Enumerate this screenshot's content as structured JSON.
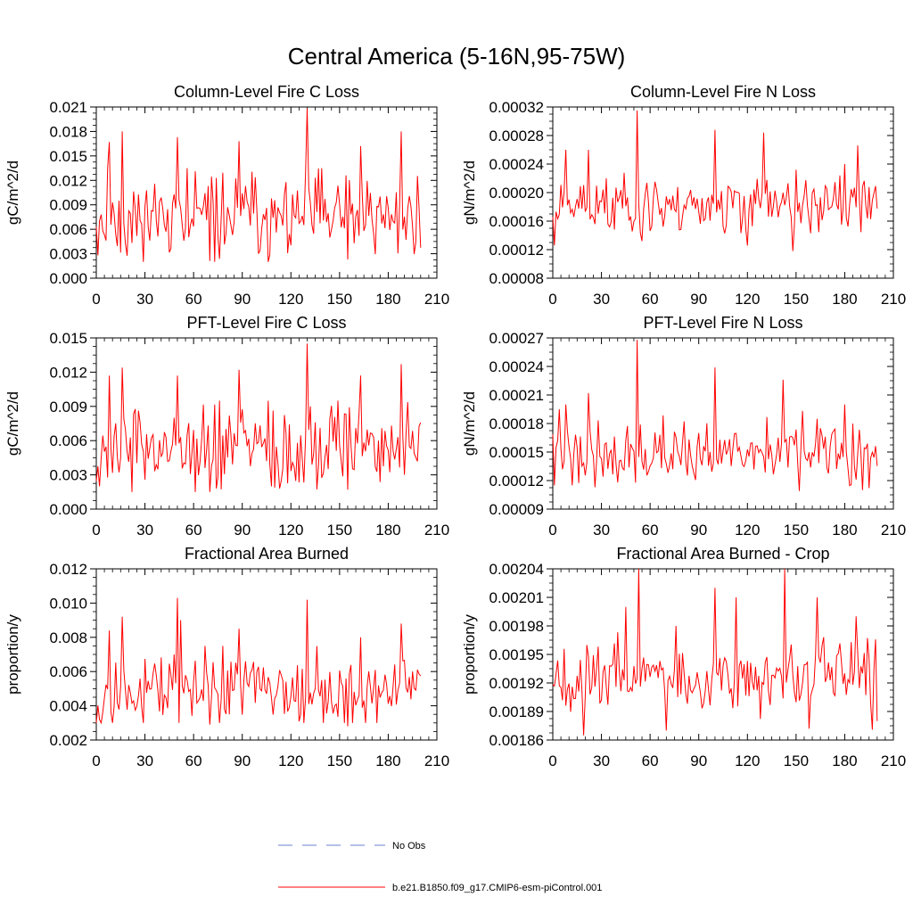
{
  "title": "Central America (5-16N,95-75W)",
  "colors": {
    "series": "#ff0000",
    "obs": "#6a7fd0",
    "axis": "#000000"
  },
  "legend": [
    {
      "label": "No Obs",
      "style": "dashed",
      "color": "#6a7fd0"
    },
    {
      "label": "b.e21.B1850.f09_g17.CMIP6-esm-piControl.001",
      "style": "solid",
      "color": "#ff0000"
    }
  ],
  "chart_data": [
    {
      "type": "line",
      "title": "Column-Level Fire C Loss",
      "ylabel": "gC/m^2/d",
      "xlim": [
        0,
        210
      ],
      "xticks": [
        "0",
        "30",
        "60",
        "90",
        "120",
        "150",
        "180",
        "210"
      ],
      "ylim": [
        0,
        0.021
      ],
      "yticks": [
        "0.000",
        "0.003",
        "0.006",
        "0.009",
        "0.012",
        "0.015",
        "0.018",
        "0.021"
      ],
      "seed": 11,
      "spikes": [
        [
          8,
          0.0167
        ],
        [
          16,
          0.018
        ],
        [
          50,
          0.0173
        ],
        [
          88,
          0.0168
        ],
        [
          130,
          0.0208
        ],
        [
          163,
          0.0162
        ],
        [
          188,
          0.018
        ]
      ],
      "dips": [
        [
          1,
          0.0028
        ],
        [
          70,
          0.0021
        ],
        [
          155,
          0.0023
        ]
      ],
      "series": [
        {
          "name": "b.e21.B1850.f09_g17.CMIP6-esm-piControl.001",
          "x_start": 0,
          "x_end": 200,
          "mean": 0.0075,
          "spread": 0.0028,
          "min": 0.002,
          "max": 0.0135
        }
      ]
    },
    {
      "type": "line",
      "title": "Column-Level Fire N Loss",
      "ylabel": "gN/m^2/d",
      "xlim": [
        0,
        210
      ],
      "xticks": [
        "0",
        "30",
        "60",
        "90",
        "120",
        "150",
        "180",
        "210"
      ],
      "ylim": [
        8e-05,
        0.00032
      ],
      "yticks": [
        "0.00008",
        "0.00012",
        "0.00016",
        "0.00020",
        "0.00024",
        "0.00028",
        "0.00032"
      ],
      "seed": 23,
      "spikes": [
        [
          8,
          0.00026
        ],
        [
          22,
          0.00026
        ],
        [
          52,
          0.000315
        ],
        [
          100,
          0.000288
        ],
        [
          130,
          0.000284
        ],
        [
          180,
          0.00024
        ],
        [
          188,
          0.000266
        ]
      ],
      "dips": [
        [
          1,
          0.000126
        ],
        [
          55,
          0.000132
        ],
        [
          148,
          0.000118
        ]
      ],
      "series": [
        {
          "name": "b.e21.B1850.f09_g17.CMIP6-esm-piControl.001",
          "x_start": 0,
          "x_end": 200,
          "mean": 0.00018,
          "spread": 2.2e-05,
          "min": 0.000125,
          "max": 0.000232
        }
      ]
    },
    {
      "type": "line",
      "title": "PFT-Level Fire C Loss",
      "ylabel": "gC/m^2/d",
      "xlim": [
        0,
        210
      ],
      "xticks": [
        "0",
        "30",
        "60",
        "90",
        "120",
        "150",
        "180",
        "210"
      ],
      "ylim": [
        0,
        0.015
      ],
      "yticks": [
        "0.000",
        "0.003",
        "0.006",
        "0.009",
        "0.012",
        "0.015"
      ],
      "seed": 37,
      "spikes": [
        [
          8,
          0.0117
        ],
        [
          16,
          0.0124
        ],
        [
          50,
          0.0117
        ],
        [
          88,
          0.0122
        ],
        [
          130,
          0.0145
        ],
        [
          163,
          0.0117
        ],
        [
          188,
          0.0127
        ]
      ],
      "dips": [
        [
          2,
          0.002
        ],
        [
          70,
          0.0015
        ],
        [
          155,
          0.0017
        ]
      ],
      "series": [
        {
          "name": "b.e21.B1850.f09_g17.CMIP6-esm-piControl.001",
          "x_start": 0,
          "x_end": 200,
          "mean": 0.0052,
          "spread": 0.0019,
          "min": 0.0015,
          "max": 0.0095
        }
      ]
    },
    {
      "type": "line",
      "title": "PFT-Level Fire N Loss",
      "ylabel": "gN/m^2/d",
      "xlim": [
        0,
        210
      ],
      "xticks": [
        "0",
        "30",
        "60",
        "90",
        "120",
        "150",
        "180",
        "210"
      ],
      "ylim": [
        9e-05,
        0.00027
      ],
      "yticks": [
        "0.00009",
        "0.00012",
        "0.00015",
        "0.00018",
        "0.00021",
        "0.00024",
        "0.00027"
      ],
      "seed": 41,
      "spikes": [
        [
          8,
          0.0002
        ],
        [
          22,
          0.000212
        ],
        [
          52,
          0.000268
        ],
        [
          100,
          0.000239
        ],
        [
          142,
          0.000226
        ],
        [
          180,
          0.0002
        ]
      ],
      "dips": [
        [
          1,
          0.000115
        ],
        [
          40,
          0.000118
        ],
        [
          152,
          0.000109
        ],
        [
          195,
          0.000112
        ]
      ],
      "series": [
        {
          "name": "b.e21.B1850.f09_g17.CMIP6-esm-piControl.001",
          "x_start": 0,
          "x_end": 200,
          "mean": 0.000148,
          "spread": 1.6e-05,
          "min": 0.00011,
          "max": 0.000195
        }
      ]
    },
    {
      "type": "line",
      "title": "Fractional Area Burned",
      "ylabel": "proportion/y",
      "xlim": [
        0,
        210
      ],
      "xticks": [
        "0",
        "30",
        "60",
        "90",
        "120",
        "150",
        "180",
        "210"
      ],
      "ylim": [
        0.002,
        0.012
      ],
      "yticks": [
        "0.002",
        "0.004",
        "0.006",
        "0.008",
        "0.010",
        "0.012"
      ],
      "seed": 53,
      "spikes": [
        [
          8,
          0.0084
        ],
        [
          16,
          0.0092
        ],
        [
          50,
          0.0103
        ],
        [
          52,
          0.009
        ],
        [
          88,
          0.0085
        ],
        [
          130,
          0.0102
        ],
        [
          163,
          0.008
        ],
        [
          188,
          0.0088
        ]
      ],
      "dips": [
        [
          2,
          0.0032
        ],
        [
          70,
          0.0029
        ],
        [
          155,
          0.0028
        ]
      ],
      "series": [
        {
          "name": "b.e21.B1850.f09_g17.CMIP6-esm-piControl.001",
          "x_start": 0,
          "x_end": 200,
          "mean": 0.0048,
          "spread": 0.0011,
          "min": 0.003,
          "max": 0.0075
        }
      ]
    },
    {
      "type": "line",
      "title": "Fractional Area Burned - Crop",
      "ylabel": "proportion/y",
      "xlim": [
        0,
        210
      ],
      "xticks": [
        "0",
        "30",
        "60",
        "90",
        "120",
        "150",
        "180",
        "210"
      ],
      "ylim": [
        0.00186,
        0.00204
      ],
      "yticks": [
        "0.00186",
        "0.00189",
        "0.00192",
        "0.00195",
        "0.00198",
        "0.00201",
        "0.00204"
      ],
      "seed": 67,
      "spikes": [
        [
          45,
          0.002
        ],
        [
          53,
          0.00204
        ],
        [
          76,
          0.00198
        ],
        [
          100,
          0.00202
        ],
        [
          113,
          0.00201
        ],
        [
          143,
          0.00204
        ],
        [
          163,
          0.00201
        ],
        [
          187,
          0.00199
        ]
      ],
      "dips": [
        [
          19,
          0.001865
        ],
        [
          70,
          0.00187
        ],
        [
          158,
          0.001872
        ],
        [
          197,
          0.001871
        ]
      ],
      "series": [
        {
          "name": "b.e21.B1850.f09_g17.CMIP6-esm-piControl.001",
          "x_start": 0,
          "x_end": 200,
          "mean": 0.001925,
          "spread": 1.8e-05,
          "min": 0.00188,
          "max": 0.001975
        }
      ]
    }
  ]
}
